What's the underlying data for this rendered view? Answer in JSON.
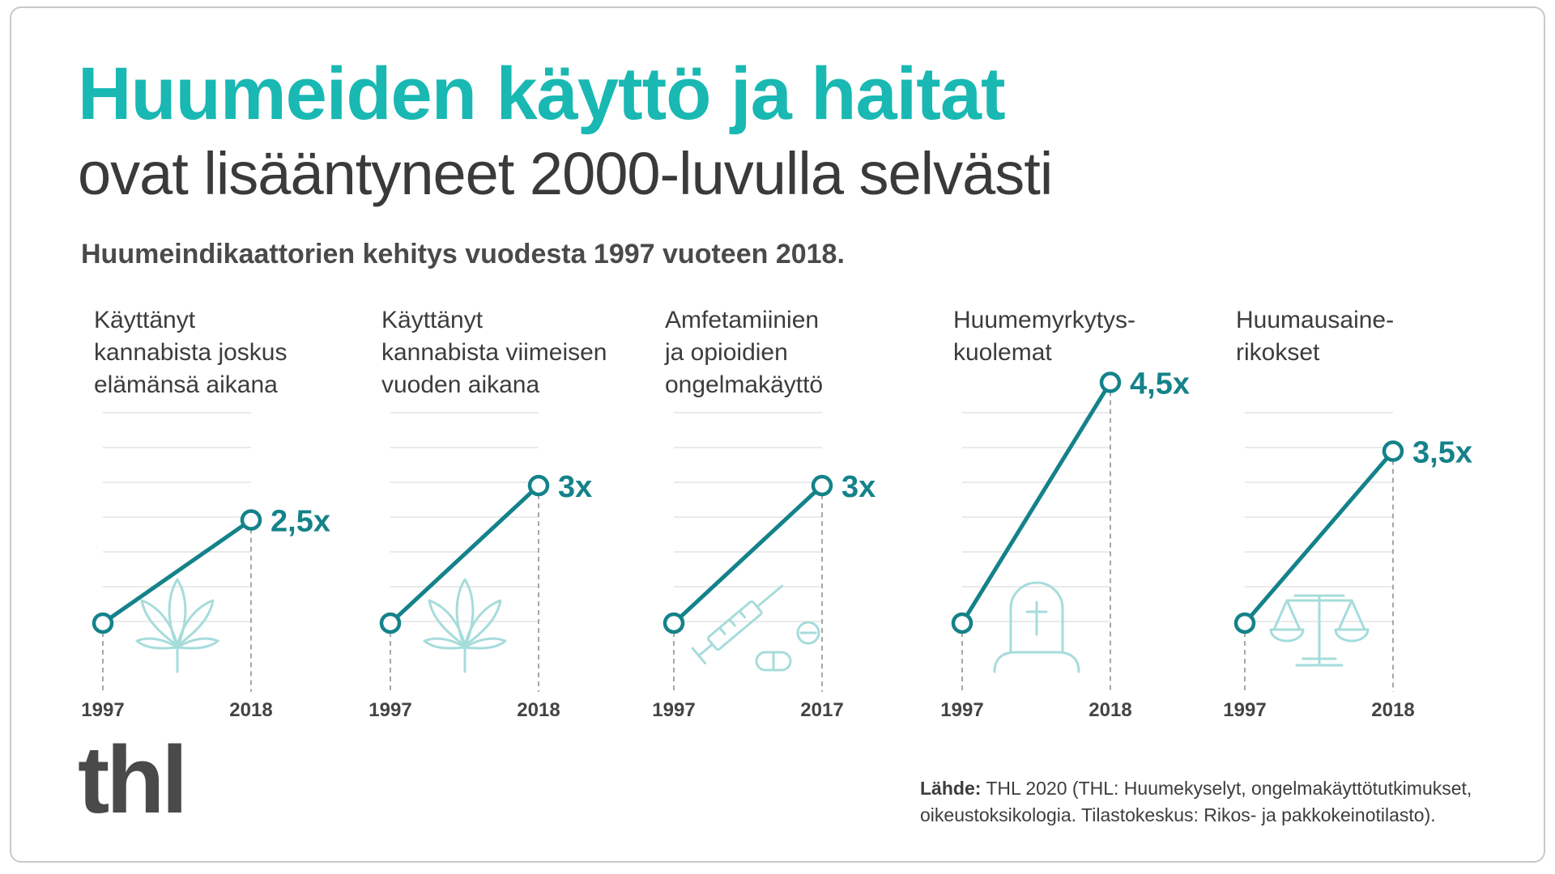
{
  "title": "Huumeiden käyttö ja haitat",
  "subtitle": "ovat lisääntyneet 2000-luvulla selvästi",
  "lead": "Huumeindikaattorien kehitys vuodesta 1997 vuoteen 2018.",
  "logo": "thl",
  "source": {
    "label": "Lähde:",
    "line1": "THL 2020 (THL: Huumekyselyt, ongelmakäyttötutkimukset,",
    "line2": "oikeustoksikologia. Tilastokeskus: Rikos- ja pakkokeinotilasto)."
  },
  "colors": {
    "accent": "#19b8b3",
    "line": "#14828a",
    "icon": "#a6dcdb",
    "grid": "#e3e3e3"
  },
  "chart_data": [
    {
      "type": "line",
      "title": [
        "Käyttänyt",
        "kannabista joskus",
        "elämänsä aikana"
      ],
      "categories": [
        "1997",
        "2018"
      ],
      "values": [
        1,
        2.5
      ],
      "label": "2,5x",
      "ylim": [
        0,
        5
      ],
      "icon": "cannabis-leaf-icon"
    },
    {
      "type": "line",
      "title": [
        "Käyttänyt",
        "kannabista viimeisen",
        "vuoden aikana"
      ],
      "categories": [
        "1997",
        "2018"
      ],
      "values": [
        1,
        3
      ],
      "label": "3x",
      "ylim": [
        0,
        5
      ],
      "icon": "cannabis-leaf-icon"
    },
    {
      "type": "line",
      "title": [
        "Amfetamiinien",
        "ja opioidien",
        "ongelmakäyttö"
      ],
      "categories": [
        "1997",
        "2017"
      ],
      "values": [
        1,
        3
      ],
      "label": "3x",
      "ylim": [
        0,
        5
      ],
      "icon": "syringe-pills-icon"
    },
    {
      "type": "line",
      "title": [
        "Huumemyrkytys-",
        "kuolemat"
      ],
      "categories": [
        "1997",
        "2018"
      ],
      "values": [
        1,
        4.5
      ],
      "label": "4,5x",
      "ylim": [
        0,
        5
      ],
      "icon": "gravestone-icon"
    },
    {
      "type": "line",
      "title": [
        "Huumausaine-",
        "rikokset"
      ],
      "categories": [
        "1997",
        "2018"
      ],
      "values": [
        1,
        3.5
      ],
      "label": "3,5x",
      "ylim": [
        0,
        5
      ],
      "icon": "scales-icon"
    }
  ]
}
